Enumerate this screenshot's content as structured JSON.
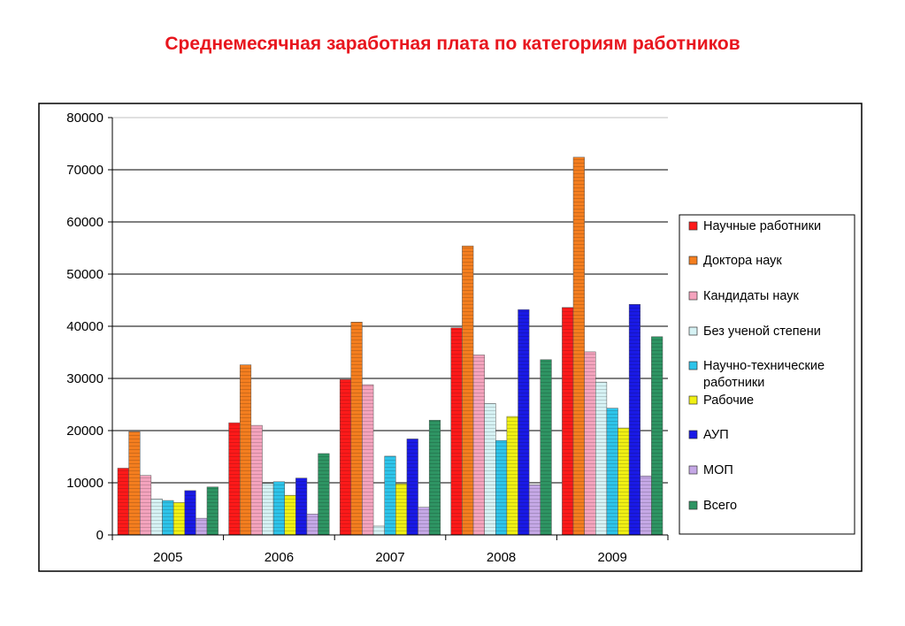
{
  "title": "Среднемесячная заработная плата по категориям работников",
  "chart_data": {
    "type": "bar",
    "title": "Среднемесячная заработная плата по категориям работников",
    "xlabel": "",
    "ylabel": "",
    "ylim": [
      0,
      80000
    ],
    "yticks": [
      0,
      10000,
      20000,
      30000,
      40000,
      50000,
      60000,
      70000,
      80000
    ],
    "grid": true,
    "legend_position": "right",
    "categories": [
      "2005",
      "2006",
      "2007",
      "2008",
      "2009"
    ],
    "series": [
      {
        "name": "Научные работники",
        "color": "#ff1a1a",
        "values": [
          12800,
          21500,
          29800,
          39700,
          43600
        ]
      },
      {
        "name": "Доктора наук",
        "color": "#f47e1f",
        "values": [
          19800,
          32600,
          40800,
          55400,
          72400
        ]
      },
      {
        "name": "Кандидаты наук",
        "color": "#f4a3bd",
        "values": [
          11400,
          21000,
          28800,
          34500,
          35100
        ]
      },
      {
        "name": "Без ученой степени",
        "color": "#d6f2f4",
        "values": [
          6900,
          9900,
          1700,
          25200,
          29300
        ]
      },
      {
        "name": "Научно-технические работники",
        "color": "#2ec4ea",
        "values": [
          6600,
          10200,
          15100,
          18100,
          24300
        ]
      },
      {
        "name": "Рабочие",
        "color": "#f0f014",
        "values": [
          6200,
          7600,
          9800,
          22700,
          20500
        ]
      },
      {
        "name": "АУП",
        "color": "#1a1ae6",
        "values": [
          8500,
          10900,
          18400,
          43200,
          44200
        ]
      },
      {
        "name": "МОП",
        "color": "#c5a8e6",
        "values": [
          3200,
          4000,
          5300,
          9600,
          11300
        ]
      },
      {
        "name": "Всего",
        "color": "#2e9463",
        "values": [
          9200,
          15600,
          22000,
          33600,
          38000
        ]
      }
    ]
  }
}
